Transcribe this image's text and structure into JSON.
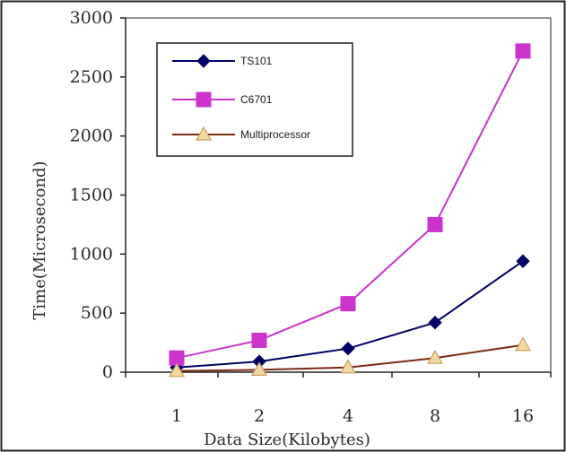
{
  "chart_data": {
    "type": "line",
    "title": "",
    "xlabel": "Data Size(Kilobytes)",
    "ylabel": "Time(Microsecond)",
    "categories": [
      "1",
      "2",
      "4",
      "8",
      "16"
    ],
    "ylim": [
      0,
      3000
    ],
    "yticks": [
      "0",
      "500",
      "1000",
      "1500",
      "2000",
      "2500",
      "3000"
    ],
    "grid": false,
    "legend_position": "top-left",
    "series": [
      {
        "name": "TS101",
        "values": [
          40,
          90,
          200,
          420,
          940
        ],
        "color": "#000066",
        "marker": "diamond"
      },
      {
        "name": "C6701",
        "values": [
          120,
          270,
          580,
          1250,
          2720
        ],
        "color": "#cc33cc",
        "marker": "square"
      },
      {
        "name": "Multiprocessor",
        "values": [
          10,
          20,
          40,
          120,
          230
        ],
        "color": "#7a2a10",
        "marker": "triangle",
        "marker_fill": "#f5d7a0"
      }
    ]
  }
}
